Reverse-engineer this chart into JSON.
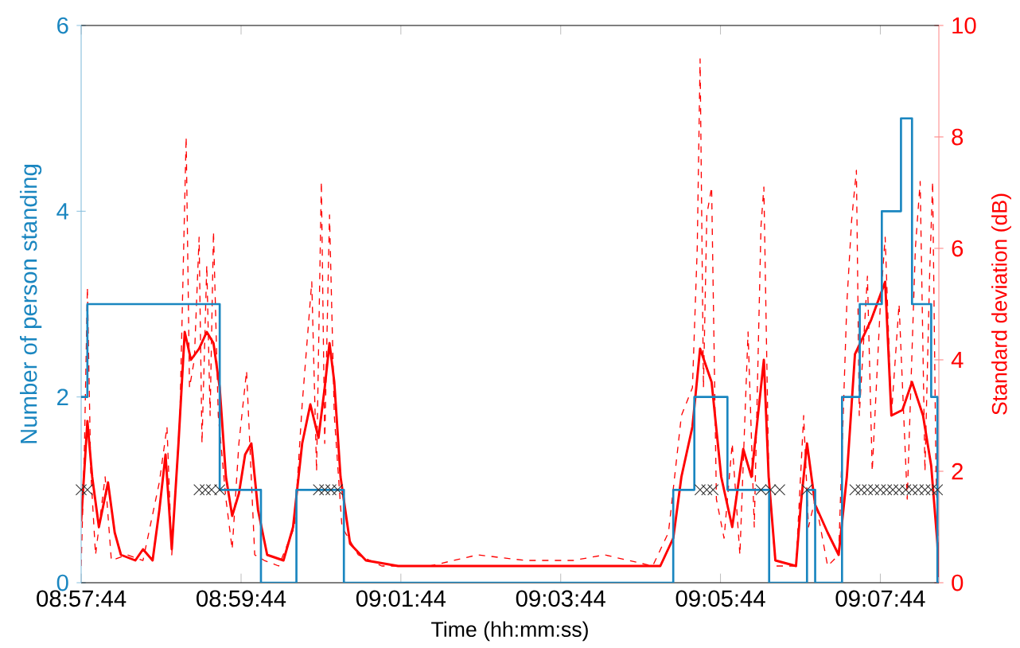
{
  "chart_data": {
    "type": "line",
    "xlabel": "Time (hh:mm:ss)",
    "ylabel": "Number of person standing",
    "y2label": "Standard deviation (dB)",
    "xlim": [
      8.9622,
      9.1411
    ],
    "xticks": [
      {
        "value": 8.962222,
        "label": "08:57:44"
      },
      {
        "value": 8.995556,
        "label": "08:59:44"
      },
      {
        "value": 9.028889,
        "label": "09:01:44"
      },
      {
        "value": 9.062222,
        "label": "09:03:44"
      },
      {
        "value": 9.095556,
        "label": "09:05:44"
      },
      {
        "value": 9.128889,
        "label": "09:07:44"
      }
    ],
    "ylim": [
      0,
      6
    ],
    "yticks": [
      0,
      2,
      4,
      6
    ],
    "y2lim": [
      0,
      10
    ],
    "y2ticks": [
      0,
      2,
      4,
      6,
      8,
      10
    ],
    "series": [
      {
        "axis": "y2",
        "color": "#ff0000",
        "line_style": "dashed",
        "x": [
          8.9622,
          8.9629,
          8.9635,
          8.9642,
          8.9652,
          8.9672,
          8.9685,
          8.9718,
          8.9751,
          8.9785,
          8.9801,
          8.9811,
          8.9828,
          8.9841,
          8.9848,
          8.9858,
          8.9868,
          8.9874,
          8.9884,
          8.9891,
          8.9898,
          8.9908,
          8.9924,
          8.9937,
          8.9951,
          8.9967,
          8.9984,
          9.0004,
          9.0034,
          9.0067,
          9.0083,
          9.0103,
          9.0113,
          9.0123,
          9.013,
          9.014,
          9.015,
          9.0166,
          9.02,
          9.0249,
          9.0349,
          9.0449,
          9.0548,
          9.0648,
          9.0714,
          9.0814,
          9.0847,
          9.0874,
          9.0897,
          9.0907,
          9.0913,
          9.092,
          9.0927,
          9.0937,
          9.0947,
          9.0963,
          9.098,
          9.0996,
          9.1013,
          9.1026,
          9.104,
          9.1046,
          9.1056,
          9.107,
          9.1113,
          9.1129,
          9.1139,
          9.1153,
          9.1179,
          9.1202,
          9.1219,
          9.1229,
          9.1239,
          9.1245,
          9.1262,
          9.1272,
          9.1289,
          9.1299,
          9.1312,
          9.1328,
          9.1345,
          9.1362,
          9.1372,
          9.1382,
          9.1392,
          9.1398,
          9.1405,
          9.1411
        ],
        "values": [
          0.3,
          2.5,
          5.3,
          2.0,
          0.5,
          1.9,
          0.4,
          0.5,
          0.4,
          1.8,
          2.8,
          0.5,
          3.0,
          8.0,
          3.5,
          4.0,
          6.2,
          2.5,
          5.7,
          3.0,
          6.3,
          3.0,
          1.5,
          0.6,
          2.5,
          3.8,
          0.5,
          0.4,
          0.3,
          1.0,
          3.2,
          5.4,
          2.0,
          7.2,
          2.5,
          6.6,
          3.0,
          1.0,
          0.5,
          0.3,
          0.3,
          0.5,
          0.4,
          0.4,
          0.5,
          0.3,
          0.9,
          3.0,
          3.5,
          6.0,
          9.4,
          3.5,
          6.6,
          7.1,
          1.5,
          0.8,
          2.5,
          0.5,
          4.5,
          1.0,
          6.4,
          7.1,
          2.0,
          0.3,
          0.3,
          3.0,
          1.0,
          1.5,
          0.3,
          0.5,
          5.0,
          6.5,
          7.4,
          3.0,
          5.5,
          2.0,
          5.0,
          6.2,
          3.0,
          5.0,
          1.5,
          6.0,
          7.2,
          2.0,
          5.6,
          7.2,
          2.0,
          0.2
        ]
      },
      {
        "axis": "y2",
        "color": "#ff0000",
        "line_style": "solid",
        "x": [
          8.9622,
          8.9635,
          8.9645,
          8.9659,
          8.9678,
          8.9692,
          8.9705,
          8.9735,
          8.9751,
          8.9771,
          8.9785,
          8.9798,
          8.9811,
          8.9825,
          8.9838,
          8.9851,
          8.9868,
          8.9884,
          8.9898,
          8.9911,
          8.9924,
          8.9937,
          8.9951,
          8.9964,
          8.9977,
          8.9991,
          9.001,
          9.0044,
          9.0064,
          9.0083,
          9.01,
          9.0117,
          9.013,
          9.014,
          9.015,
          9.0163,
          9.0183,
          9.0216,
          9.0283,
          9.0349,
          9.0449,
          9.0515,
          9.0581,
          9.0648,
          9.0747,
          9.083,
          9.0857,
          9.0874,
          9.0897,
          9.0913,
          9.0937,
          9.0957,
          9.098,
          9.1003,
          9.102,
          9.1046,
          9.1056,
          9.107,
          9.1113,
          9.1123,
          9.1136,
          9.1153,
          9.1179,
          9.1202,
          9.1219,
          9.1236,
          9.1269,
          9.1299,
          9.1312,
          9.1335,
          9.1355,
          9.1378,
          9.1395,
          9.1408,
          9.1411
        ],
        "values": [
          1.1,
          2.9,
          1.9,
          1.0,
          1.8,
          0.9,
          0.5,
          0.4,
          0.6,
          0.4,
          1.3,
          2.3,
          0.6,
          2.5,
          4.5,
          4.0,
          4.2,
          4.5,
          4.3,
          3.5,
          1.9,
          1.2,
          1.6,
          2.3,
          2.5,
          1.3,
          0.5,
          0.4,
          1.0,
          2.5,
          3.2,
          2.6,
          3.5,
          4.3,
          3.6,
          1.9,
          0.7,
          0.4,
          0.3,
          0.3,
          0.3,
          0.3,
          0.3,
          0.3,
          0.3,
          0.3,
          0.8,
          1.9,
          2.8,
          4.2,
          3.6,
          1.9,
          1.0,
          2.4,
          1.9,
          4.0,
          1.9,
          0.4,
          0.3,
          1.4,
          2.5,
          1.4,
          0.9,
          0.5,
          1.9,
          4.1,
          4.7,
          5.4,
          3.0,
          3.1,
          3.6,
          3.0,
          2.1,
          0.7,
          0.1
        ]
      },
      {
        "type": "step",
        "axis": "y",
        "color": "#1a86c0",
        "line_style": "solid",
        "x": [
          8.9622,
          8.9635,
          8.9911,
          8.9997,
          9.0071,
          9.017,
          9.0857,
          9.0901,
          9.097,
          9.1057,
          9.1136,
          9.1153,
          9.1209,
          9.1246,
          9.1292,
          9.1332,
          9.1355,
          9.1395,
          9.1408,
          9.1411
        ],
        "values": [
          2,
          3,
          1,
          0,
          1,
          0,
          1,
          2,
          1,
          0,
          1,
          0,
          2,
          3,
          4,
          5,
          3,
          2,
          0,
          0
        ]
      },
      {
        "type": "scatter",
        "axis": "y",
        "color": "#333333",
        "marker": "cross",
        "x": [
          8.9622,
          8.9635,
          8.9868,
          8.9881,
          8.9894,
          8.9911,
          9.0117,
          9.013,
          9.0143,
          9.0157,
          9.0913,
          9.0927,
          9.094,
          9.104,
          9.106,
          9.1079,
          9.1136,
          9.1236,
          9.1249,
          9.1262,
          9.1275,
          9.1289,
          9.1302,
          9.1315,
          9.1328,
          9.1342,
          9.1355,
          9.1368,
          9.1382,
          9.1395,
          9.1408
        ],
        "values": [
          1,
          1,
          1,
          1,
          1,
          1,
          1,
          1,
          1,
          1,
          1,
          1,
          1,
          1,
          1,
          1,
          1,
          1,
          1,
          1,
          1,
          1,
          1,
          1,
          1,
          1,
          1,
          1,
          1,
          1,
          1
        ]
      }
    ]
  }
}
